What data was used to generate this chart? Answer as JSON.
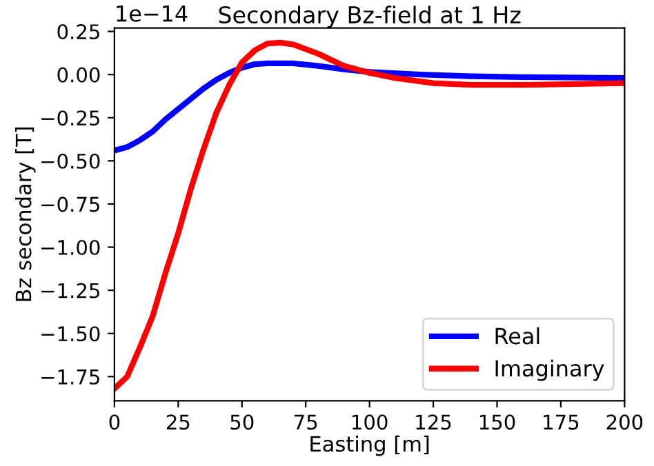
{
  "chart_data": {
    "type": "line",
    "title": "Secondary Bz-field at 1 Hz",
    "xlabel": "Easting [m]",
    "ylabel": "Bz secondary [T]",
    "annotations": [
      "1e−14"
    ],
    "xlim": [
      0,
      200
    ],
    "xticks": [
      0,
      25,
      50,
      75,
      100,
      125,
      150,
      175,
      200
    ],
    "ylim": [
      -1.89,
      0.27
    ],
    "yticks": [
      {
        "value": 0.25,
        "label": "0.25"
      },
      {
        "value": 0,
        "label": "0.00"
      },
      {
        "value": -0.25,
        "label": "−0.25"
      },
      {
        "value": -0.5,
        "label": "−0.50"
      },
      {
        "value": -0.75,
        "label": "−0.75"
      },
      {
        "value": -1,
        "label": "−1.00"
      },
      {
        "value": -1.25,
        "label": "−1.25"
      },
      {
        "value": -1.5,
        "label": "−1.50"
      },
      {
        "value": -1.75,
        "label": "−1.75"
      }
    ],
    "grid": false,
    "legend": "bottom right",
    "line_style": "solid",
    "series": [
      {
        "name": "Real",
        "color": "#0000ff",
        "x": [
          0,
          5,
          10,
          15,
          20,
          25,
          30,
          35,
          40,
          45,
          50,
          55,
          60,
          70,
          80,
          90,
          100,
          120,
          140,
          160,
          200
        ],
        "values": [
          -0.44,
          -0.42,
          -0.38,
          -0.33,
          -0.26,
          -0.2,
          -0.14,
          -0.08,
          -0.03,
          0.01,
          0.04,
          0.06,
          0.065,
          0.065,
          0.05,
          0.03,
          0.015,
          0.0,
          -0.01,
          -0.015,
          -0.02
        ]
      },
      {
        "name": "Imaginary",
        "color": "#ff0000",
        "x": [
          0,
          5,
          10,
          15,
          20,
          25,
          30,
          35,
          40,
          45,
          50,
          55,
          60,
          65,
          70,
          80,
          90,
          100,
          110,
          125,
          140,
          160,
          200
        ],
        "values": [
          -1.82,
          -1.75,
          -1.58,
          -1.4,
          -1.15,
          -0.92,
          -0.66,
          -0.43,
          -0.22,
          -0.06,
          0.07,
          0.14,
          0.18,
          0.185,
          0.175,
          0.12,
          0.05,
          0.01,
          -0.02,
          -0.05,
          -0.06,
          -0.06,
          -0.05
        ]
      }
    ]
  }
}
